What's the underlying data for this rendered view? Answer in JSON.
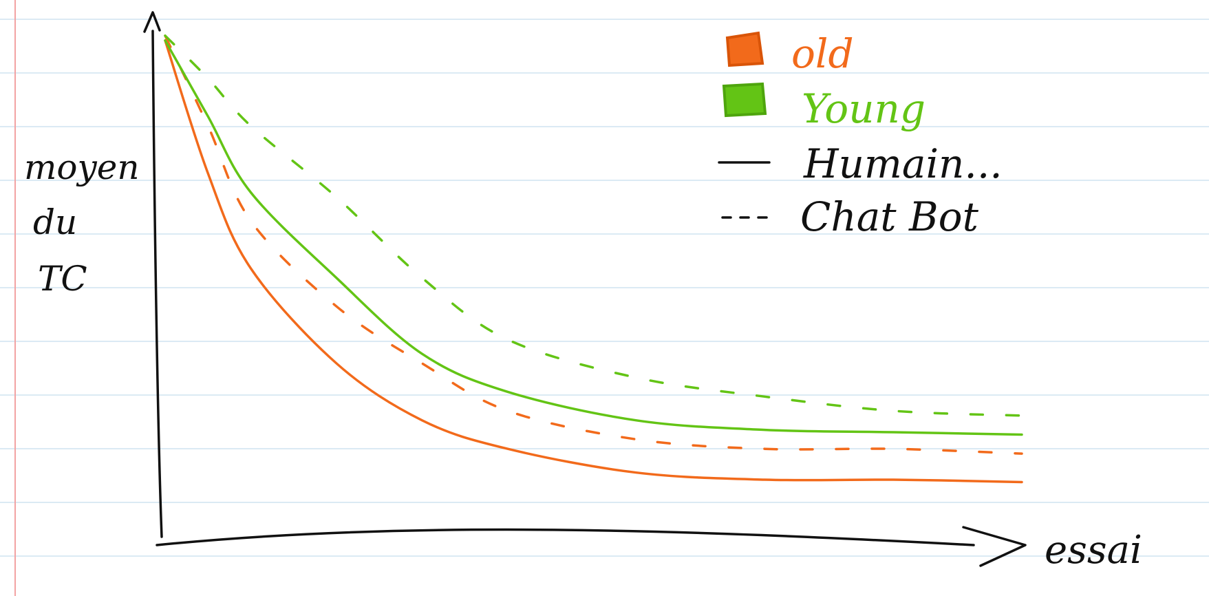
{
  "chart_data": {
    "type": "line",
    "title": "",
    "ylabel": [
      "moyen",
      "du",
      "TC"
    ],
    "xlabel": "essai",
    "ylim": [
      0,
      100
    ],
    "xlim": [
      0,
      100
    ],
    "grid": "ruled notebook lines",
    "legend_position": "top-right",
    "colors": {
      "old": "#f26a1b",
      "young": "#63c415",
      "axis": "#111111",
      "rule": "#cfe3f0",
      "margin": "#f2a3a3"
    },
    "legend": {
      "groups": [
        {
          "name": "old",
          "color": "#f26a1b"
        },
        {
          "name": "Young",
          "color": "#63c415"
        }
      ],
      "styles": [
        {
          "name": "Humain...",
          "dash": "solid"
        },
        {
          "name": "Chat Bot",
          "dash": "dashed"
        }
      ]
    },
    "x": [
      0,
      5,
      10,
      20,
      30,
      40,
      55,
      70,
      85,
      100
    ],
    "series": [
      {
        "group": "old",
        "style": "solid",
        "values": [
          98,
          70,
          50,
          30,
          18,
          12,
          7,
          5.5,
          5.5,
          5
        ]
      },
      {
        "group": "old",
        "style": "dashed",
        "values": [
          99,
          80,
          60,
          42,
          30,
          20,
          14,
          12,
          12,
          11
        ]
      },
      {
        "group": "young",
        "style": "solid",
        "values": [
          98,
          82,
          66,
          48,
          32,
          24,
          18,
          16,
          15.5,
          15
        ]
      },
      {
        "group": "young",
        "style": "dashed",
        "values": [
          99,
          90,
          80,
          65,
          48,
          35,
          27,
          23,
          20,
          19
        ]
      }
    ]
  }
}
